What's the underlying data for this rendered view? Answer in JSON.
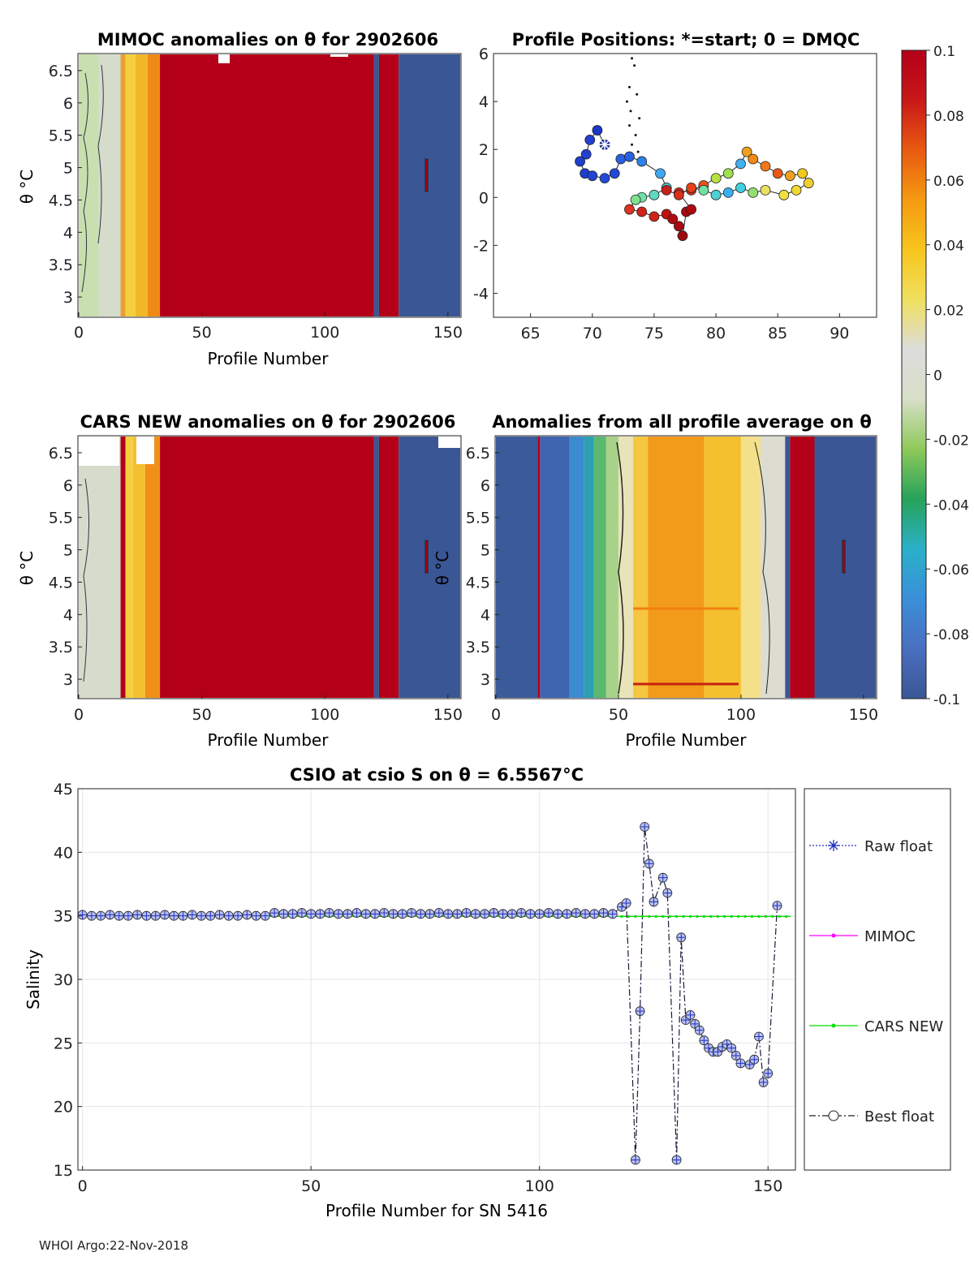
{
  "colors": {
    "red": "#b30018",
    "darkblue": "#3a5694",
    "white": "#ffffff",
    "cbar": [
      "#3a5694",
      "#4a6fc0",
      "#3b8fd9",
      "#2ab0c8",
      "#27a25a",
      "#8ec95a",
      "#d8dfc8",
      "#dcdcdc",
      "#f0e060",
      "#f7c51c",
      "#f59a12",
      "#e85a10",
      "#c81818",
      "#b30018"
    ]
  },
  "chart_data": [
    {
      "type": "heatmap",
      "title": "MIMOC anomalies on θ  for 2902606",
      "xlabel": "Profile Number",
      "ylabel": "θ °C",
      "xlim": [
        0,
        155
      ],
      "ylim": [
        2.7,
        6.75
      ],
      "xticks": [
        "0",
        "50",
        "100",
        "150"
      ],
      "yticks": [
        "6.5",
        "6",
        "5.5",
        "5",
        "4.5",
        "4",
        "3.5",
        "3"
      ]
    },
    {
      "type": "scatter",
      "title": "Profile Positions: *=start; 0 = DMQC",
      "xlabel": "",
      "ylabel": "",
      "xlim": [
        62,
        93
      ],
      "ylim": [
        -5,
        6
      ],
      "xticks": [
        "65",
        "70",
        "75",
        "80",
        "85",
        "90"
      ],
      "yticks": [
        "6",
        "4",
        "2",
        "0",
        "-2",
        "-4"
      ]
    },
    {
      "type": "heatmap",
      "title": "CARS NEW anomalies on θ for 2902606",
      "xlabel": "Profile Number",
      "ylabel": "θ °C",
      "xlim": [
        0,
        155
      ],
      "ylim": [
        2.7,
        6.75
      ],
      "xticks": [
        "0",
        "50",
        "100",
        "150"
      ],
      "yticks": [
        "6.5",
        "6",
        "5.5",
        "5",
        "4.5",
        "4",
        "3.5",
        "3"
      ]
    },
    {
      "type": "heatmap",
      "title": "Anomalies from all profile average on θ",
      "xlabel": "Profile Number",
      "ylabel": "θ °C",
      "xlim": [
        0,
        155
      ],
      "ylim": [
        2.7,
        6.75
      ],
      "xticks": [
        "0",
        "50",
        "100",
        "150"
      ],
      "yticks": [
        "6.5",
        "6",
        "5.5",
        "5",
        "4.5",
        "4",
        "3.5",
        "3"
      ]
    },
    {
      "type": "colorbar",
      "range": [
        -0.1,
        0.1
      ],
      "ticks": [
        "0.1",
        "0.08",
        "0.06",
        "0.04",
        "0.02",
        "0",
        "-0.02",
        "-0.04",
        "-0.06",
        "-0.08",
        "-0.1"
      ]
    },
    {
      "type": "line",
      "title": "CSIO at csio S on θ = 6.5567°C",
      "xlabel": "Profile Number for SN 5416",
      "ylabel": "Salinity",
      "xlim": [
        -1,
        156
      ],
      "ylim": [
        15,
        45
      ],
      "xticks": [
        "0",
        "50",
        "100",
        "150"
      ],
      "yticks": [
        "45",
        "40",
        "35",
        "30",
        "25",
        "20",
        "15"
      ],
      "legend": [
        "Raw float",
        "MIMOC",
        "CARS NEW",
        "Best float"
      ],
      "legend_position": "right"
    }
  ],
  "footer": "WHOI Argo:22-Nov-2018"
}
